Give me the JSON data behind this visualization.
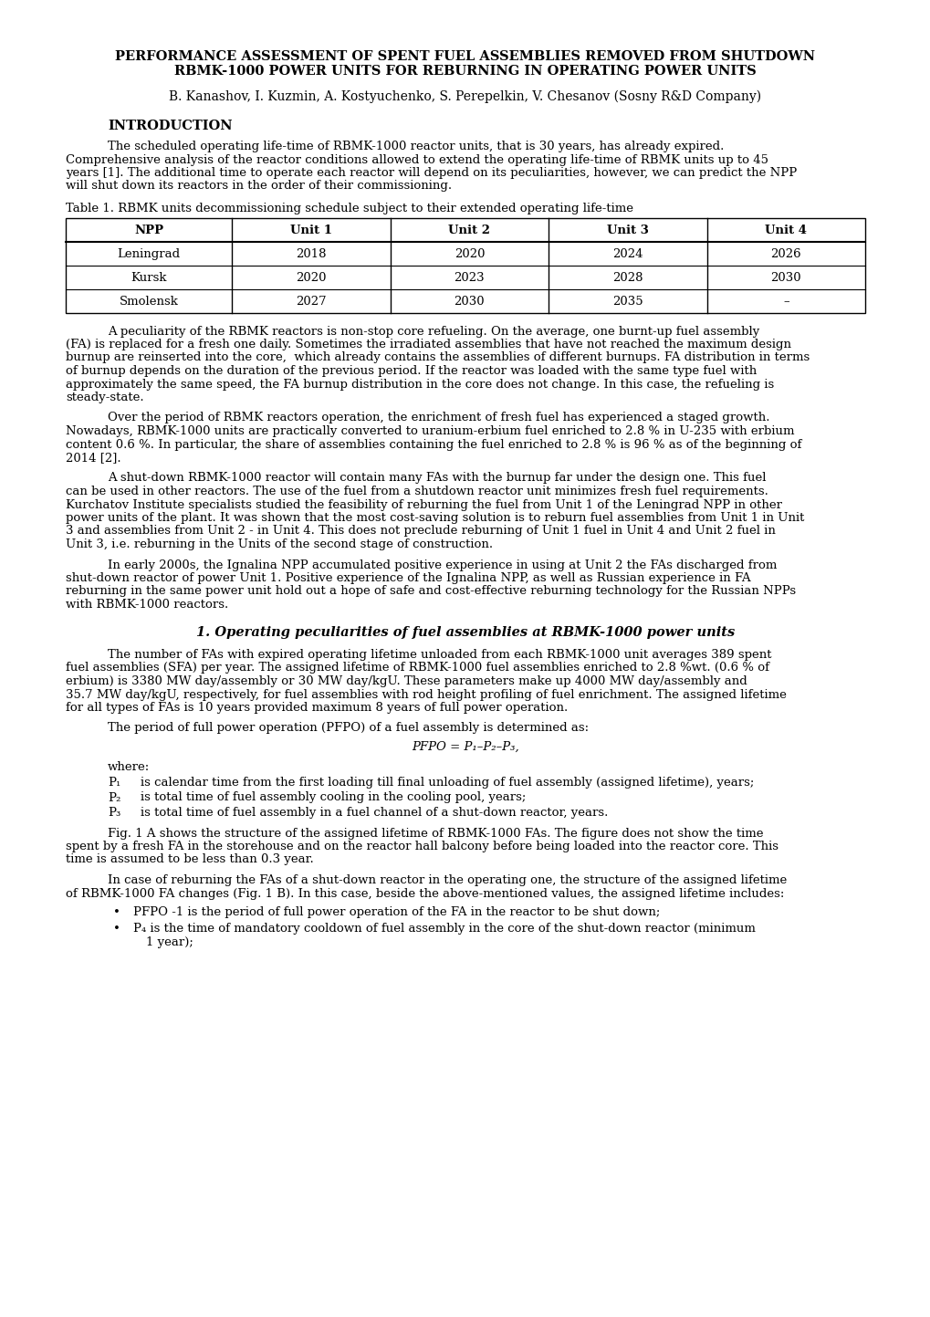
{
  "background_color": "#ffffff",
  "title_line1": "PERFORMANCE ASSESSMENT OF SPENT FUEL ASSEMBLIES REMOVED FROM SHUTDOWN",
  "title_line2": "RBMK-1000 POWER UNITS FOR REBURNING IN OPERATING POWER UNITS",
  "authors": "B. Kanashov, I. Kuzmin, A. Kostyuchenko, S. Perepelkin, V. Chesanov (Sosny R&D Company)",
  "section1_heading": "INTRODUCTION",
  "intro_para1": "The scheduled operating life-time of RBMK-1000 reactor units, that is 30 years, has already expired. Comprehensive analysis of the reactor conditions allowed to extend the operating life-time of RBMK units up to 45 years [1]. The additional time to operate each reactor will depend on its peculiarities, however, we can predict the NPP will shut down its reactors in the order of their commissioning.",
  "table_caption": "Table 1. RBMK units decommissioning schedule subject to their extended operating life-time",
  "table_headers": [
    "NPP",
    "Unit 1",
    "Unit 2",
    "Unit 3",
    "Unit 4"
  ],
  "table_rows": [
    [
      "Leningrad",
      "2018",
      "2020",
      "2024",
      "2026"
    ],
    [
      "Kursk",
      "2020",
      "2023",
      "2028",
      "2030"
    ],
    [
      "Smolensk",
      "2027",
      "2030",
      "2035",
      "–"
    ]
  ],
  "para2": "A peculiarity of the RBMK reactors is non-stop core refueling. On the average, one burnt-up fuel assembly (FA) is replaced for a fresh one daily. Sometimes the irradiated assemblies that have not reached the maximum design burnup are reinserted into the core,  which already contains the assemblies of different burnups. FA distribution in terms of burnup depends on the duration of the previous period. If the reactor was loaded with the same type fuel with approximately the same speed, the FA burnup distribution in the core does not change. In this case, the refueling is steady-state.",
  "para3": "Over the period of RBMK reactors operation, the enrichment of fresh fuel has experienced a staged growth. Nowadays, RBMK-1000 units are practically converted to uranium-erbium fuel enriched to 2.8 % in U-235 with erbium content 0.6 %. In particular, the share of assemblies containing the fuel enriched to 2.8 % is 96 % as of the beginning of 2014 [2].",
  "para4": "A shut-down RBMK-1000 reactor will contain many FAs with the burnup far under the design one. This fuel can be used in other reactors. The use of the fuel from a shutdown reactor unit minimizes fresh fuel requirements. Kurchatov Institute specialists studied the feasibility of reburning the fuel from Unit 1 of the Leningrad NPP in other power units of the plant. It was shown that the most cost-saving solution is to reburn fuel assemblies from Unit 1 in Unit 3 and assemblies from Unit 2 - in Unit 4. This does not preclude reburning of Unit 1 fuel in Unit 4 and Unit 2 fuel in Unit 3, i.e. reburning in the Units of the second stage of construction.",
  "para5": "In early 2000s, the Ignalina NPP accumulated positive experience in using at Unit 2 the FAs discharged from shut-down reactor of power Unit 1. Positive experience of the Ignalina NPP, as well as Russian experience in FA reburning in the same power unit hold out a hope of safe and cost-effective reburning technology for the Russian NPPs with RBMK-1000 reactors.",
  "section2_heading": "1. Operating peculiarities of fuel assemblies at RBMK-1000 power units",
  "para6": "The number of FAs with expired operating lifetime unloaded from each RBMK-1000 unit averages 389 spent fuel assemblies (SFA) per year. The assigned lifetime of RBMK-1000 fuel assemblies enriched to 2.8 %wt. (0.6 % of erbium) is 3380 MW day/assembly or 30 MW day/kgU. These parameters make up 4000 MW day/assembly and 35.7 MW day/kgU, respectively, for fuel assemblies with rod height profiling of fuel enrichment. The assigned lifetime for all types of FAs is 10 years provided maximum 8 years of full power operation.",
  "para7": "The period of full power operation (PFPO) of a fuel assembly is determined as:",
  "formula": "PFPO = P₁–P₂–P₃,",
  "where_text": "where:",
  "p1_label": "P₁",
  "p1_text": "is calendar time from the first loading till final unloading of fuel assembly (assigned lifetime), years;",
  "p2_label": "P₂",
  "p2_text": "is total time of fuel assembly cooling in the cooling pool, years;",
  "p3_label": "P₃",
  "p3_text": "is total time of fuel assembly in a fuel channel of a shut-down reactor, years.",
  "para8": "Fig. 1 A shows the structure of the assigned lifetime of RBMK-1000 FAs. The figure does not show the time spent by a fresh FA in the storehouse and on the reactor hall balcony before being loaded into the reactor core. This time is assumed to be less than 0.3 year.",
  "para9": "In case of reburning the FAs of a shut-down reactor in the operating one, the structure of the assigned lifetime of RBMK-1000 FA changes (Fig. 1 B). In this case, beside the above-mentioned values, the assigned lifetime includes:",
  "bullet_pfpo": "PFPO -1 is the period of full power operation of the FA in the reactor to be shut down;",
  "bullet_p4": "P₄ is the time of mandatory cooldown of fuel assembly in the core of the shut-down reactor (minimum 1 year);"
}
